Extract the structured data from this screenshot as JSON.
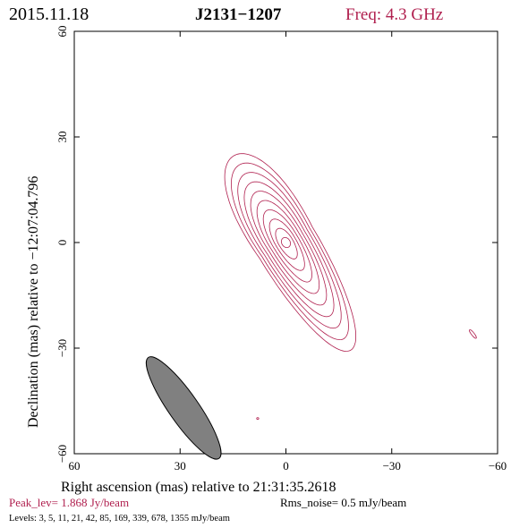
{
  "chart_data": {
    "type": "contour",
    "header": {
      "date": "2015.11.18",
      "source": "J2131−1207",
      "freq": "Freq: 4.3 GHz"
    },
    "xlabel": "Right ascension (mas) relative to 21:31:35.2618",
    "ylabel": "Declination (mas) relative to −12:07:04.796",
    "xlim": [
      60,
      -60
    ],
    "ylim": [
      -60,
      60
    ],
    "xticks": [
      60,
      30,
      0,
      -30,
      -60
    ],
    "yticks": [
      -60,
      -30,
      0,
      30,
      60
    ],
    "xtick_labels": [
      "60",
      "30",
      "0",
      "−30",
      "−60"
    ],
    "ytick_labels": [
      "−60",
      "−30",
      "0",
      "30",
      "60"
    ],
    "contour_levels_mJy": [
      3,
      5,
      11,
      21,
      42,
      85,
      169,
      339,
      678,
      1355
    ],
    "jet": {
      "core": [
        0,
        0
      ],
      "ne_extent_mas": [
        17,
        22
      ],
      "sw_extent_mas": [
        -20,
        -29
      ],
      "pa_deg": 31
    },
    "beam": {
      "center_mas": [
        29,
        -47
      ],
      "major_mas": 17.5,
      "minor_mas": 4.2,
      "pa_deg": 35,
      "color": "#808080"
    },
    "features": [
      {
        "x": -53,
        "y": -26
      },
      {
        "x": 8,
        "y": -50
      }
    ],
    "footer": {
      "peak": "Peak_lev=  1.868 Jy/beam",
      "rms": "Rms_noise=  0.5 mJy/beam",
      "levels": "Levels:  3,  5,  11,  21,  42,  85,  169,  339,  678,  1355 mJy/beam"
    },
    "colors": {
      "contour": "#b0204f",
      "red_text": "#b0204f",
      "axes": "#000000"
    }
  }
}
